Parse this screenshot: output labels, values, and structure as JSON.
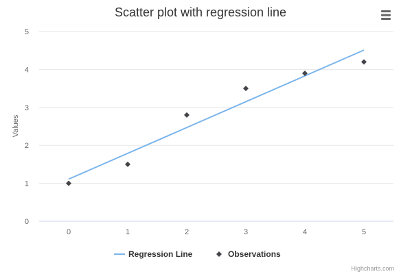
{
  "chart_data": {
    "type": "scatter",
    "title": "Scatter plot with regression line",
    "ylabel": "Values",
    "xlabel": "",
    "x_ticks": [
      "0",
      "1",
      "2",
      "3",
      "4",
      "5"
    ],
    "y_ticks": [
      "0",
      "1",
      "2",
      "3",
      "4",
      "5"
    ],
    "xlim": [
      -0.5,
      5.5
    ],
    "ylim": [
      0,
      5
    ],
    "grid": true,
    "legend_position": "bottom-center",
    "series": [
      {
        "name": "Regression Line",
        "type": "line",
        "color": "#7cb5ec",
        "points": [
          [
            0,
            1.11
          ],
          [
            5,
            4.51
          ]
        ]
      },
      {
        "name": "Observations",
        "type": "scatter",
        "marker": "diamond",
        "color": "#434348",
        "points": [
          [
            0,
            1
          ],
          [
            1,
            1.5
          ],
          [
            2,
            2.8
          ],
          [
            3,
            3.5
          ],
          [
            4,
            3.9
          ],
          [
            5,
            4.2
          ]
        ]
      }
    ]
  },
  "credits": "Highcharts.com",
  "menu": {
    "icon": "hamburger-menu-icon"
  }
}
